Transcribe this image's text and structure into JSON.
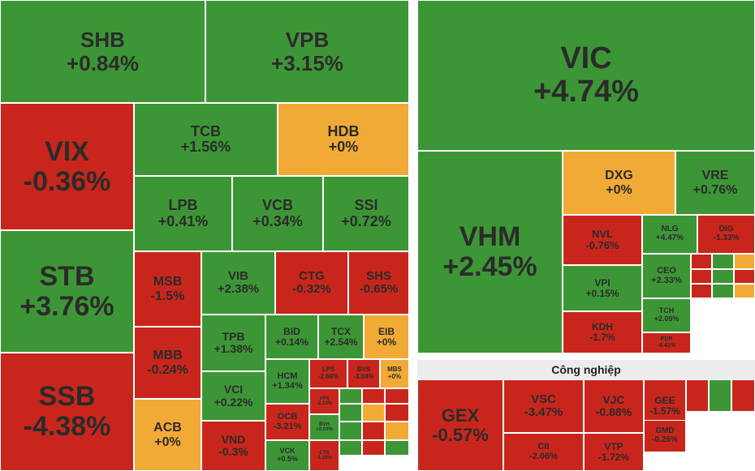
{
  "colors": {
    "up": "#3d9636",
    "down": "#c8261c",
    "flat": "#f2aa37",
    "text_dark": "#2b2b2b",
    "text_light": "#ffffff"
  },
  "sectors": {
    "industrial_label": "Công nghiệp"
  },
  "chart_data": {
    "type": "treemap",
    "items": [
      {
        "symbol": "SHB",
        "change": "+0.84%",
        "status": "up"
      },
      {
        "symbol": "VPB",
        "change": "+3.15%",
        "status": "up"
      },
      {
        "symbol": "VIX",
        "change": "-0.36%",
        "status": "down"
      },
      {
        "symbol": "STB",
        "change": "+3.76%",
        "status": "up"
      },
      {
        "symbol": "SSB",
        "change": "-4.38%",
        "status": "down"
      },
      {
        "symbol": "TCB",
        "change": "+1.56%",
        "status": "up"
      },
      {
        "symbol": "HDB",
        "change": "+0%",
        "status": "flat"
      },
      {
        "symbol": "LPB",
        "change": "+0.41%",
        "status": "up"
      },
      {
        "symbol": "VCB",
        "change": "+0.34%",
        "status": "up"
      },
      {
        "symbol": "SSI",
        "change": "+0.72%",
        "status": "up"
      },
      {
        "symbol": "MSB",
        "change": "-1.5%",
        "status": "down"
      },
      {
        "symbol": "VIB",
        "change": "+2.38%",
        "status": "up"
      },
      {
        "symbol": "CTG",
        "change": "-0.32%",
        "status": "down"
      },
      {
        "symbol": "SHS",
        "change": "-0.65%",
        "status": "down"
      },
      {
        "symbol": "MBB",
        "change": "-0.24%",
        "status": "down"
      },
      {
        "symbol": "TPB",
        "change": "+1.38%",
        "status": "up"
      },
      {
        "symbol": "BID",
        "change": "+0.14%",
        "status": "up"
      },
      {
        "symbol": "TCX",
        "change": "+2.54%",
        "status": "up"
      },
      {
        "symbol": "EIB",
        "change": "+0%",
        "status": "flat"
      },
      {
        "symbol": "HCM",
        "change": "+1.34%",
        "status": "up"
      },
      {
        "symbol": "LPS",
        "change": "-2.66%",
        "status": "down"
      },
      {
        "symbol": "BVS",
        "change": "-3.04%",
        "status": "down"
      },
      {
        "symbol": "MBS",
        "change": "+0%",
        "status": "flat"
      },
      {
        "symbol": "VCI",
        "change": "+0.22%",
        "status": "up"
      },
      {
        "symbol": "ACB",
        "change": "+0%",
        "status": "flat"
      },
      {
        "symbol": "VND",
        "change": "-0.3%",
        "status": "down"
      },
      {
        "symbol": "OCB",
        "change": "-3.21%",
        "status": "down"
      },
      {
        "symbol": "VPX",
        "change": "-2.13%",
        "status": "down"
      },
      {
        "symbol": "BVH",
        "change": "+2.03%",
        "status": "up"
      },
      {
        "symbol": "VCK",
        "change": "+0.5%",
        "status": "up"
      },
      {
        "symbol": "CTS",
        "change": "-1.28%",
        "status": "down"
      },
      {
        "symbol": "VIC",
        "change": "+4.74%",
        "status": "up"
      },
      {
        "symbol": "VHM",
        "change": "+2.45%",
        "status": "up"
      },
      {
        "symbol": "DXG",
        "change": "+0%",
        "status": "flat"
      },
      {
        "symbol": "VRE",
        "change": "+0.76%",
        "status": "up"
      },
      {
        "symbol": "NVL",
        "change": "-0.76%",
        "status": "down"
      },
      {
        "symbol": "NLG",
        "change": "+4.47%",
        "status": "up"
      },
      {
        "symbol": "DIG",
        "change": "-1.33%",
        "status": "down"
      },
      {
        "symbol": "VPI",
        "change": "+0.15%",
        "status": "up"
      },
      {
        "symbol": "CEO",
        "change": "+2.33%",
        "status": "up"
      },
      {
        "symbol": "KDH",
        "change": "-1.7%",
        "status": "down"
      },
      {
        "symbol": "TCH",
        "change": "+2.09%",
        "status": "up"
      },
      {
        "symbol": "PDR",
        "change": "-0.41%",
        "status": "down"
      },
      {
        "symbol": "GEX",
        "change": "-0.57%",
        "status": "down"
      },
      {
        "symbol": "VSC",
        "change": "-3.47%",
        "status": "down"
      },
      {
        "symbol": "VJC",
        "change": "-0.88%",
        "status": "down"
      },
      {
        "symbol": "GEE",
        "change": "-1.57%",
        "status": "down"
      },
      {
        "symbol": "CII",
        "change": "-2.06%",
        "status": "down"
      },
      {
        "symbol": "VTP",
        "change": "-1.72%",
        "status": "down"
      },
      {
        "symbol": "GMD",
        "change": "-0.26%",
        "status": "down"
      }
    ],
    "minor_tiles": [
      {
        "status": "up"
      },
      {
        "status": "down"
      },
      {
        "status": "down"
      },
      {
        "status": "up"
      },
      {
        "status": "flat"
      },
      {
        "status": "down"
      },
      {
        "status": "up"
      },
      {
        "status": "down"
      },
      {
        "status": "flat"
      },
      {
        "status": "up"
      },
      {
        "status": "down"
      },
      {
        "status": "up"
      },
      {
        "status": "down"
      },
      {
        "status": "up"
      },
      {
        "status": "flat"
      },
      {
        "status": "down"
      },
      {
        "status": "up"
      },
      {
        "status": "down"
      },
      {
        "status": "down"
      },
      {
        "status": "up"
      },
      {
        "status": "flat"
      },
      {
        "status": "down"
      },
      {
        "status": "up"
      },
      {
        "status": "down"
      }
    ]
  }
}
